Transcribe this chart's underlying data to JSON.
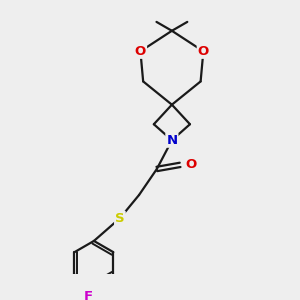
{
  "background_color": "#eeeeee",
  "bond_color": "#1a1a1a",
  "atom_colors": {
    "O": "#dd0000",
    "N": "#0000cc",
    "S": "#cccc00",
    "F": "#cc00cc",
    "C": "#1a1a1a"
  },
  "figsize": [
    3.0,
    3.0
  ],
  "dpi": 100
}
